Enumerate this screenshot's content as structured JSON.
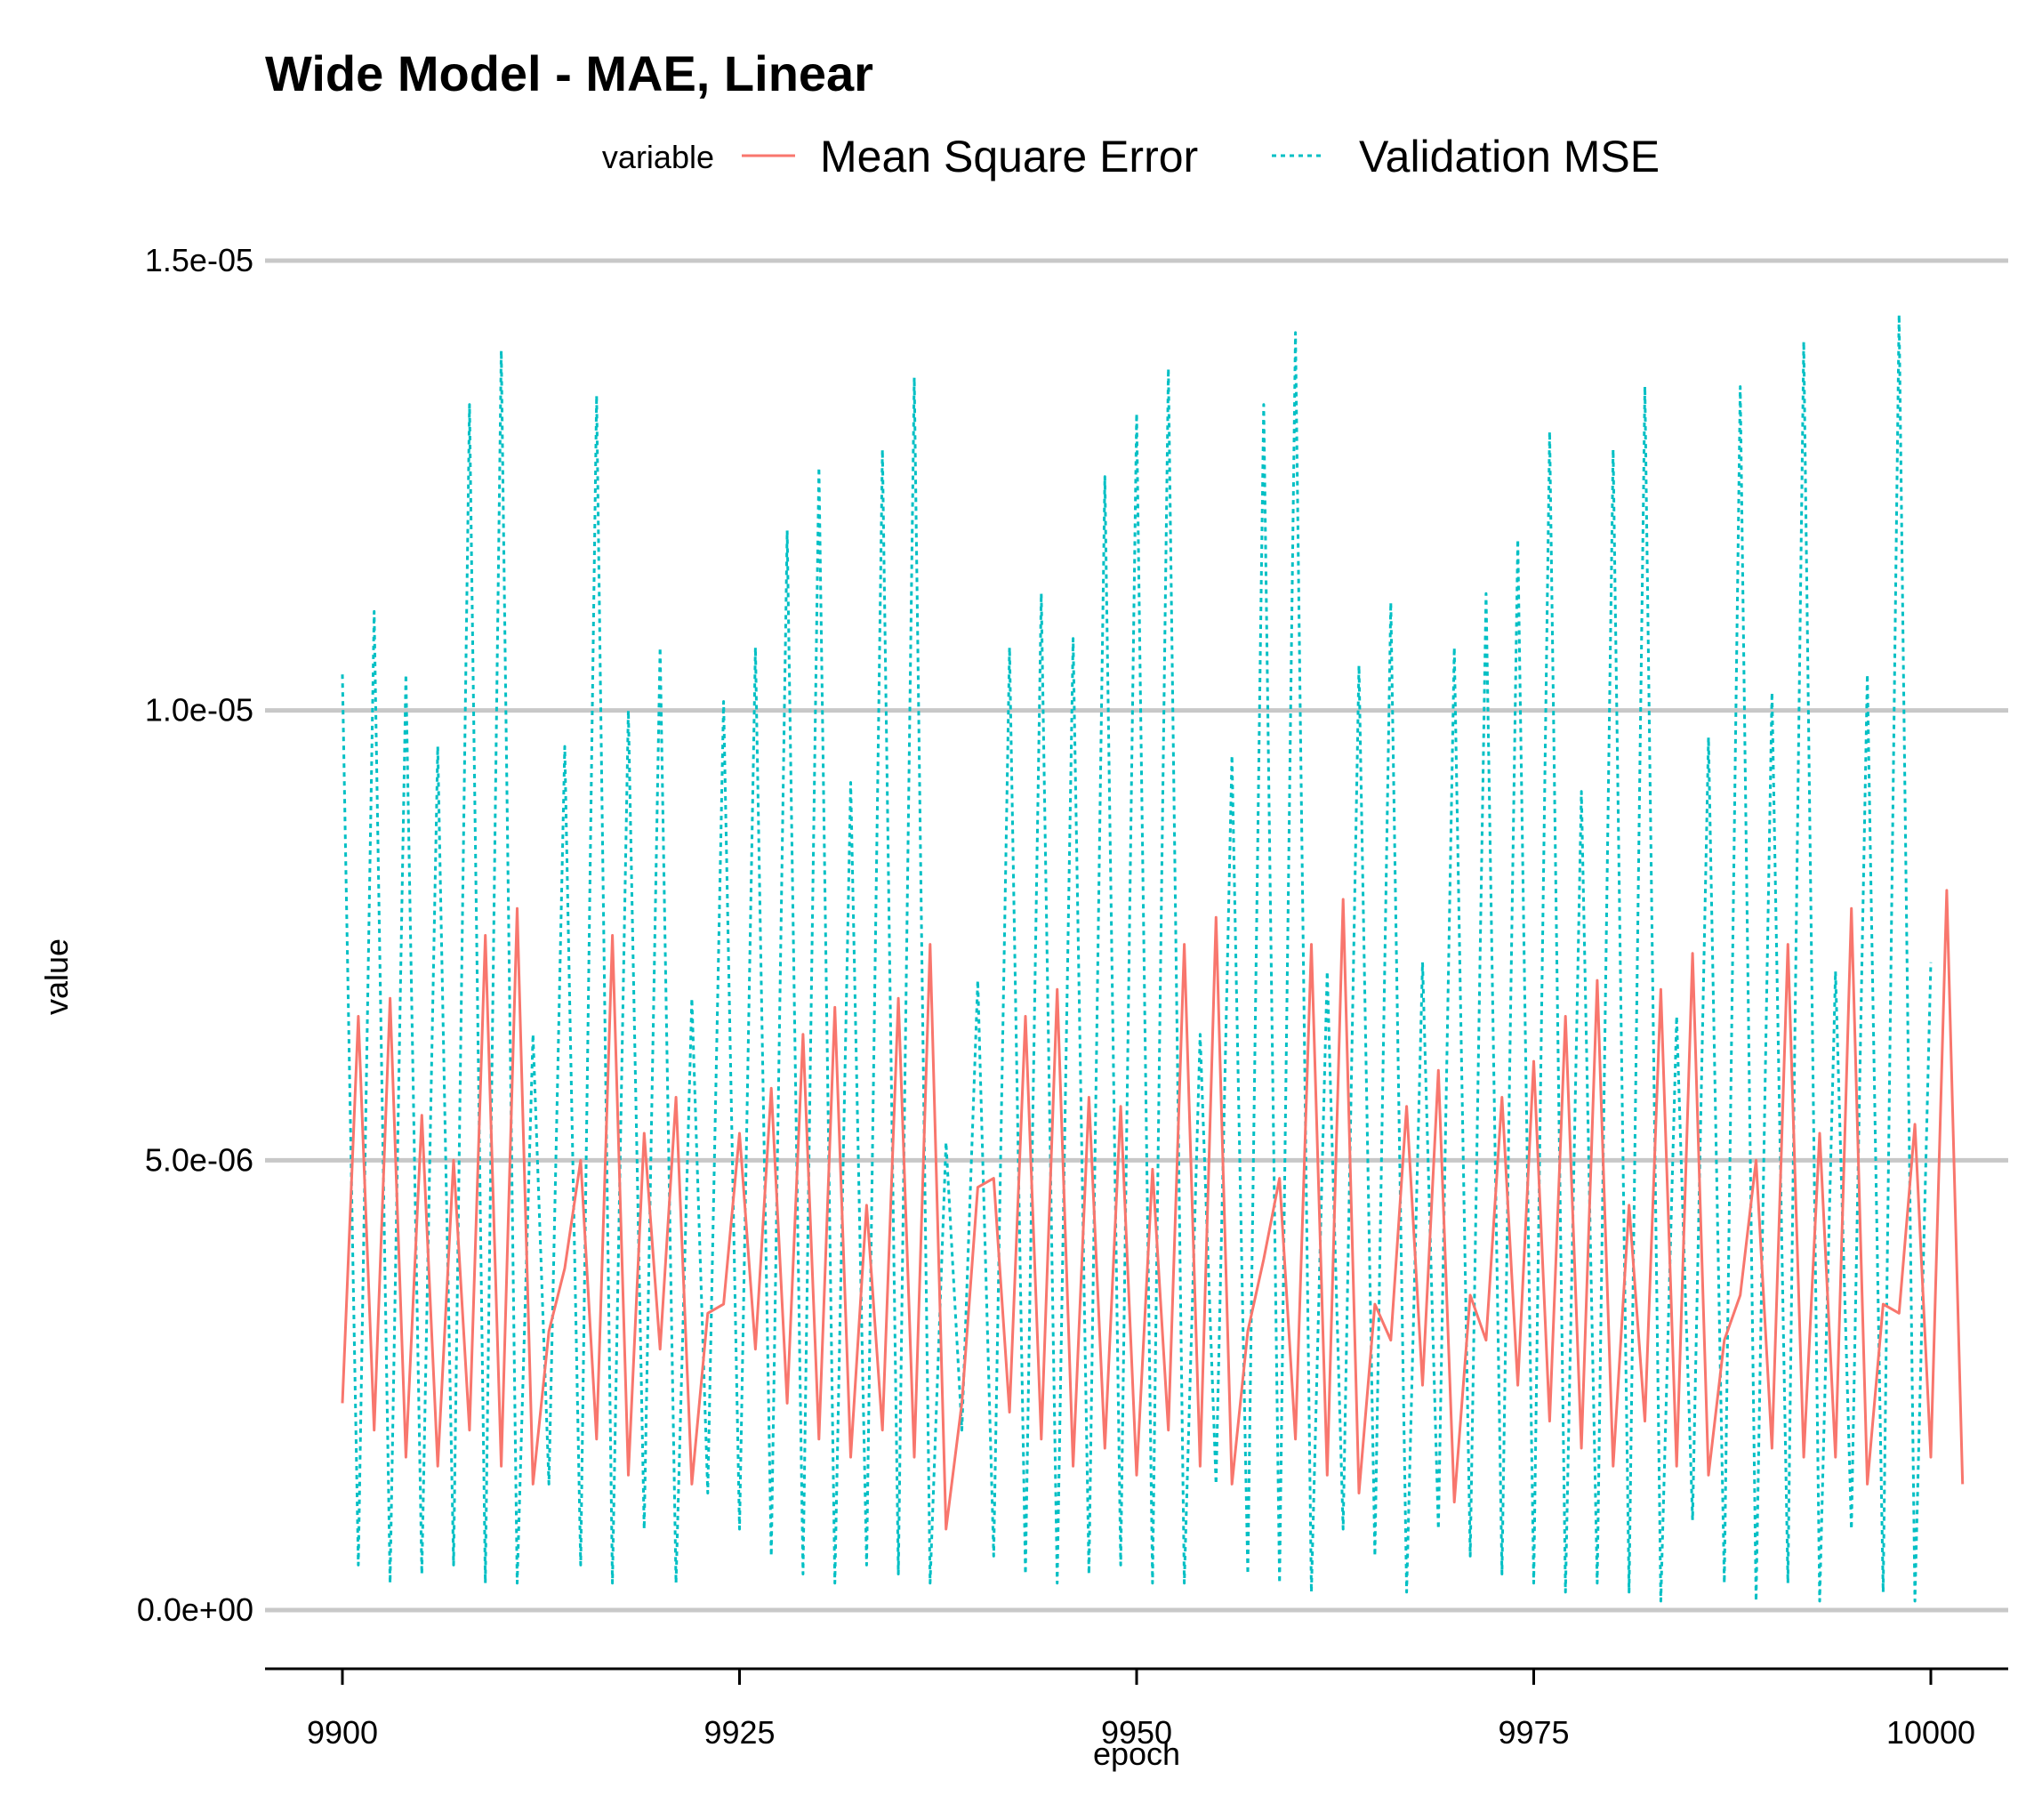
{
  "chart_data": {
    "type": "line",
    "title": "Wide Model - MAE, Linear",
    "xlabel": "epoch",
    "ylabel": "value",
    "legend": {
      "title": "variable",
      "placement": "top",
      "entries": [
        "Mean Square Error",
        "Validation MSE"
      ]
    },
    "xlim": [
      9900,
      10000
    ],
    "ylim": [
      0,
      1.5e-05
    ],
    "x_ticks": [
      9900,
      9925,
      9950,
      9975,
      10000
    ],
    "x_tick_labels": [
      "9900",
      "9925",
      "9950",
      "9975",
      "10000"
    ],
    "y_ticks": [
      0,
      5e-06,
      1e-05,
      1.5e-05
    ],
    "y_tick_labels": [
      "0.0e+00",
      "5.0e-06",
      "1.0e-05",
      "1.5e-05"
    ],
    "grid": "horizontal",
    "series": [
      {
        "name": "Mean Square Error",
        "color": "#F8766D",
        "linestyle": "solid",
        "x_start": 9900,
        "x_step": 1,
        "values": [
          2.3e-06,
          6.6e-06,
          2e-06,
          6.8e-06,
          1.7e-06,
          5.5e-06,
          1.6e-06,
          5e-06,
          2e-06,
          7.5e-06,
          1.6e-06,
          7.8e-06,
          1.4e-06,
          3.1e-06,
          3.8e-06,
          5e-06,
          1.9e-06,
          7.5e-06,
          1.5e-06,
          5.3e-06,
          2.9e-06,
          5.7e-06,
          1.4e-06,
          3.3e-06,
          3.4e-06,
          5.3e-06,
          2.9e-06,
          5.8e-06,
          2.3e-06,
          6.4e-06,
          1.9e-06,
          6.7e-06,
          1.7e-06,
          4.5e-06,
          2e-06,
          6.8e-06,
          1.7e-06,
          7.4e-06,
          9e-07,
          2.3e-06,
          4.7e-06,
          4.8e-06,
          2.2e-06,
          6.6e-06,
          1.9e-06,
          6.9e-06,
          1.6e-06,
          5.7e-06,
          1.8e-06,
          5.6e-06,
          1.5e-06,
          4.9e-06,
          2e-06,
          7.4e-06,
          1.6e-06,
          7.7e-06,
          1.4e-06,
          3.1e-06,
          3.9e-06,
          4.8e-06,
          1.9e-06,
          7.4e-06,
          1.5e-06,
          7.9e-06,
          1.3e-06,
          3.4e-06,
          3e-06,
          5.6e-06,
          2.5e-06,
          6e-06,
          1.2e-06,
          3.5e-06,
          3e-06,
          5.7e-06,
          2.5e-06,
          6.1e-06,
          2.1e-06,
          6.6e-06,
          1.8e-06,
          7e-06,
          1.6e-06,
          4.5e-06,
          2.1e-06,
          6.9e-06,
          1.6e-06,
          7.3e-06,
          1.5e-06,
          3e-06,
          3.5e-06,
          5e-06,
          1.8e-06,
          7.4e-06,
          1.7e-06,
          5.3e-06,
          1.7e-06,
          7.8e-06,
          1.4e-06,
          3.4e-06,
          3.3e-06,
          5.4e-06,
          1.7e-06,
          8e-06,
          1.4e-06
        ]
      },
      {
        "name": "Validation MSE",
        "color": "#00BFC4",
        "linestyle": "dotted",
        "x_start": 9900,
        "x_step": 1,
        "values": [
          1.04e-05,
          5e-07,
          1.11e-05,
          3e-07,
          1.04e-05,
          4e-07,
          9.6e-06,
          5e-07,
          1.34e-05,
          3e-07,
          1.4e-05,
          3e-07,
          6.4e-06,
          1.4e-06,
          9.6e-06,
          5e-07,
          1.35e-05,
          3e-07,
          1e-05,
          9e-07,
          1.07e-05,
          3e-07,
          6.8e-06,
          1.3e-06,
          1.01e-05,
          9e-07,
          1.07e-05,
          6e-07,
          1.2e-05,
          4e-07,
          1.27e-05,
          3e-07,
          9.2e-06,
          5e-07,
          1.29e-05,
          4e-07,
          1.37e-05,
          3e-07,
          5.2e-06,
          2e-06,
          7e-06,
          6e-07,
          1.07e-05,
          4e-07,
          1.13e-05,
          3e-07,
          1.08e-05,
          4e-07,
          1.26e-05,
          5e-07,
          1.33e-05,
          3e-07,
          1.38e-05,
          3e-07,
          6.4e-06,
          1.4e-06,
          9.5e-06,
          4e-07,
          1.34e-05,
          3e-07,
          1.42e-05,
          2e-07,
          7.1e-06,
          9e-07,
          1.05e-05,
          6e-07,
          1.12e-05,
          2e-07,
          7.2e-06,
          9e-07,
          1.07e-05,
          6e-07,
          1.13e-05,
          4e-07,
          1.19e-05,
          3e-07,
          1.31e-05,
          2e-07,
          9.1e-06,
          3e-07,
          1.29e-05,
          2e-07,
          1.36e-05,
          1e-07,
          6.6e-06,
          1e-06,
          9.7e-06,
          3e-07,
          1.36e-05,
          1e-07,
          1.02e-05,
          3e-07,
          1.41e-05,
          1e-07,
          7.1e-06,
          9e-07,
          1.04e-05,
          2e-07,
          1.44e-05,
          1e-07,
          7.2e-06
        ]
      }
    ]
  }
}
